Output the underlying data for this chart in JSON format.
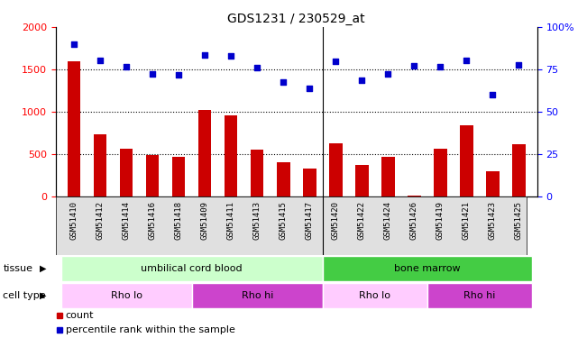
{
  "title": "GDS1231 / 230529_at",
  "samples": [
    "GSM51410",
    "GSM51412",
    "GSM51414",
    "GSM51416",
    "GSM51418",
    "GSM51409",
    "GSM51411",
    "GSM51413",
    "GSM51415",
    "GSM51417",
    "GSM51420",
    "GSM51422",
    "GSM51424",
    "GSM51426",
    "GSM51419",
    "GSM51421",
    "GSM51423",
    "GSM51425"
  ],
  "counts": [
    1600,
    730,
    560,
    490,
    460,
    1020,
    950,
    550,
    400,
    330,
    620,
    370,
    460,
    10,
    560,
    840,
    290,
    610
  ],
  "percentile_raw": [
    1800,
    1610,
    1530,
    1450,
    1440,
    1670,
    1660,
    1520,
    1350,
    1275,
    1590,
    1370,
    1445,
    1540,
    1530,
    1605,
    1195,
    1550
  ],
  "ylim_left": [
    0,
    2000
  ],
  "ylim_right": [
    0,
    100
  ],
  "yticks_left": [
    0,
    500,
    1000,
    1500,
    2000
  ],
  "yticks_right": [
    0,
    25,
    50,
    75,
    100
  ],
  "bar_color": "#cc0000",
  "dot_color": "#0000cc",
  "tissue_labels": [
    {
      "label": "umbilical cord blood",
      "start": 0,
      "end": 10,
      "color": "#ccffcc"
    },
    {
      "label": "bone marrow",
      "start": 10,
      "end": 18,
      "color": "#44cc44"
    }
  ],
  "celltype_labels": [
    {
      "label": "Rho lo",
      "start": 0,
      "end": 5,
      "color": "#ffccff"
    },
    {
      "label": "Rho hi",
      "start": 5,
      "end": 10,
      "color": "#cc44cc"
    },
    {
      "label": "Rho lo",
      "start": 10,
      "end": 14,
      "color": "#ffccff"
    },
    {
      "label": "Rho hi",
      "start": 14,
      "end": 18,
      "color": "#cc44cc"
    }
  ],
  "legend_count_label": "count",
  "legend_pct_label": "percentile rank within the sample",
  "legend_count_color": "#cc0000",
  "legend_pct_color": "#0000cc",
  "background_color": "#ffffff",
  "tick_label_fontsize": 6.5,
  "title_fontsize": 10,
  "separator_positions": [
    10
  ]
}
